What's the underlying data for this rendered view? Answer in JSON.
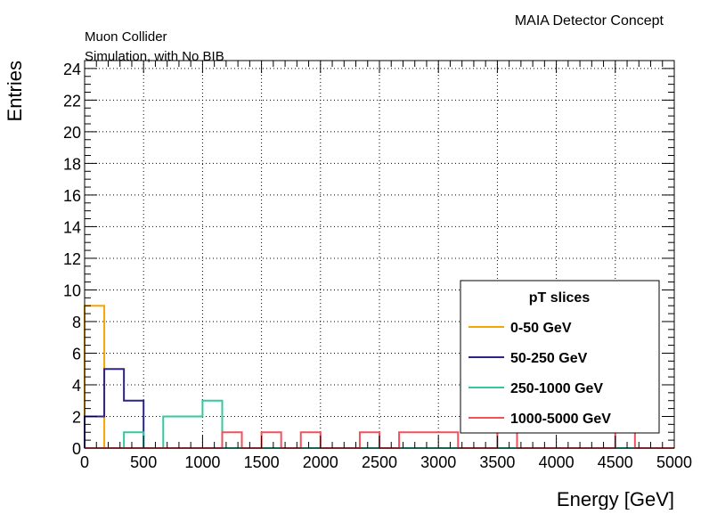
{
  "header": {
    "top_right": "MAIA Detector Concept",
    "line1": "Muon Collider",
    "line2": "Simulation, with No BIB"
  },
  "chart_data": {
    "type": "histogram",
    "xlabel": "Energy [GeV]",
    "ylabel": "Entries",
    "xlim": [
      0,
      5000
    ],
    "ylim": [
      0,
      24.5
    ],
    "x_ticks": [
      0,
      500,
      1000,
      1500,
      2000,
      2500,
      3000,
      3500,
      4000,
      4500,
      5000
    ],
    "y_ticks": [
      0,
      2,
      4,
      6,
      8,
      10,
      12,
      14,
      16,
      18,
      20,
      22,
      24
    ],
    "grid": true,
    "bin_edges": [
      0,
      166.67,
      333.33,
      500,
      666.67,
      833.33,
      1000,
      1166.67,
      1333.33,
      1500,
      1666.67,
      1833.33,
      2000,
      2166.67,
      2333.33,
      2500,
      2666.67,
      2833.33,
      3000,
      3166.67,
      3333.33,
      3500,
      3666.67,
      3833.33,
      4000,
      4166.67,
      4333.33,
      4500,
      4666.67,
      4833.33,
      5000
    ],
    "legend": {
      "title": "pT slices",
      "position": "bottom-right"
    },
    "series": [
      {
        "name": "0-50 GeV",
        "color": "#f5a700",
        "values": [
          9,
          0,
          0,
          0,
          0,
          0,
          0,
          0,
          0,
          0,
          0,
          0,
          0,
          0,
          0,
          0,
          0,
          0,
          0,
          0,
          0,
          0,
          0,
          0,
          0,
          0,
          0,
          0,
          0,
          0
        ]
      },
      {
        "name": "50-250 GeV",
        "color": "#2c2288",
        "values": [
          2,
          5,
          3,
          0,
          0,
          0,
          0,
          0,
          0,
          0,
          0,
          0,
          0,
          0,
          0,
          0,
          0,
          0,
          0,
          0,
          0,
          0,
          0,
          0,
          0,
          0,
          0,
          0,
          0,
          0
        ]
      },
      {
        "name": "250-1000 GeV",
        "color": "#32c8a0",
        "values": [
          0,
          0,
          1,
          0,
          2,
          2,
          3,
          0,
          0,
          0,
          0,
          0,
          0,
          0,
          0,
          0,
          0,
          0,
          0,
          0,
          0,
          0,
          0,
          0,
          0,
          0,
          0,
          0,
          0,
          0
        ]
      },
      {
        "name": "1000-5000 GeV",
        "color": "#f5505a",
        "values": [
          0,
          0,
          0,
          0,
          0,
          0,
          0,
          1,
          0,
          1,
          0,
          1,
          0,
          0,
          1,
          0,
          1,
          1,
          1,
          0,
          0,
          1,
          0,
          0,
          0,
          0,
          0,
          1,
          0,
          0
        ]
      }
    ]
  }
}
